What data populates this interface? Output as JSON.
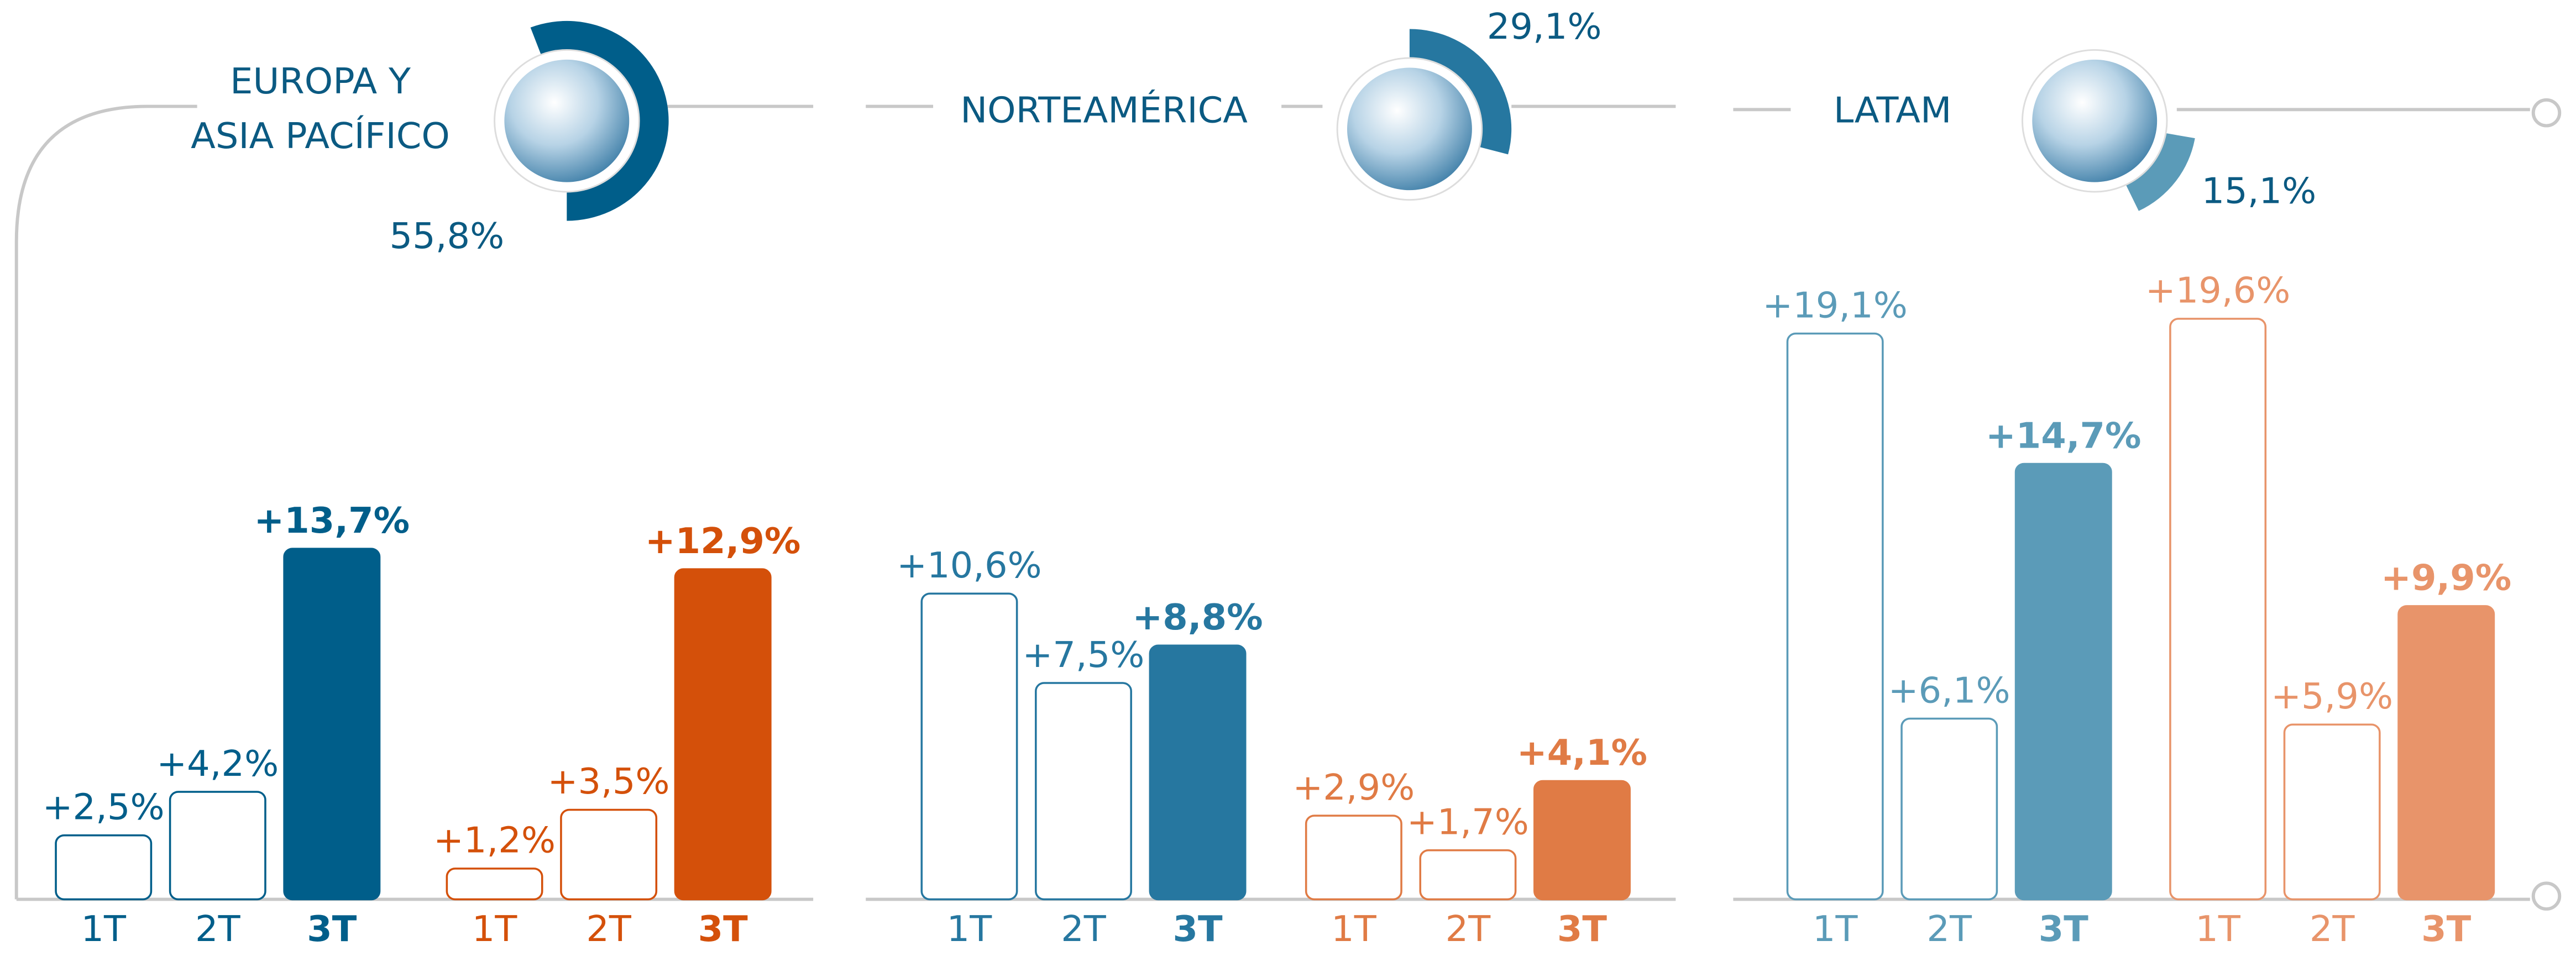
{
  "chart_data": [
    {
      "type": "bar",
      "title": [
        "EUROPA Y",
        "ASIA PACÍFICO"
      ],
      "share": {
        "value": 55.8,
        "label": "55,8%"
      },
      "categories": [
        "1T",
        "2T",
        "3T"
      ],
      "ylim": [
        0,
        25.7
      ],
      "series": [
        {
          "color": "#005e8a",
          "values": [
            2.5,
            4.2,
            13.7
          ],
          "value_labels": [
            "+2,5%",
            "+4,2%",
            "+13,7%"
          ]
        },
        {
          "color": "#d4500a",
          "values": [
            1.2,
            3.5,
            12.9
          ],
          "value_labels": [
            "+1,2%",
            "+3,5%",
            "+12,9%"
          ]
        }
      ]
    },
    {
      "type": "bar",
      "title": [
        "NORTEAMÉRICA"
      ],
      "share": {
        "value": 29.1,
        "label": "29,1%"
      },
      "categories": [
        "1T",
        "2T",
        "3T"
      ],
      "ylim": [
        0,
        22.8
      ],
      "series": [
        {
          "color": "#2677a0",
          "values": [
            10.6,
            7.5,
            8.8
          ],
          "value_labels": [
            "+10,6%",
            "+7,5%",
            "+8,8%"
          ]
        },
        {
          "color": "#e07b45",
          "values": [
            2.9,
            1.7,
            4.1
          ],
          "value_labels": [
            "+2,9%",
            "+1,7%",
            "+4,1%"
          ]
        }
      ]
    },
    {
      "type": "bar",
      "title": [
        "LATAM"
      ],
      "share": {
        "value": 15.1,
        "label": "15,1%"
      },
      "categories": [
        "1T",
        "2T",
        "3T"
      ],
      "ylim": [
        0,
        22.2
      ],
      "series": [
        {
          "color": "#5b9bb8",
          "values": [
            19.1,
            6.1,
            14.7
          ],
          "value_labels": [
            "+19,1%",
            "+6,1%",
            "+14,7%"
          ]
        },
        {
          "color": "#e8946a",
          "values": [
            19.6,
            5.9,
            9.9
          ],
          "value_labels": [
            "+19,6%",
            "+5,9%",
            "+9,9%"
          ]
        }
      ]
    }
  ]
}
